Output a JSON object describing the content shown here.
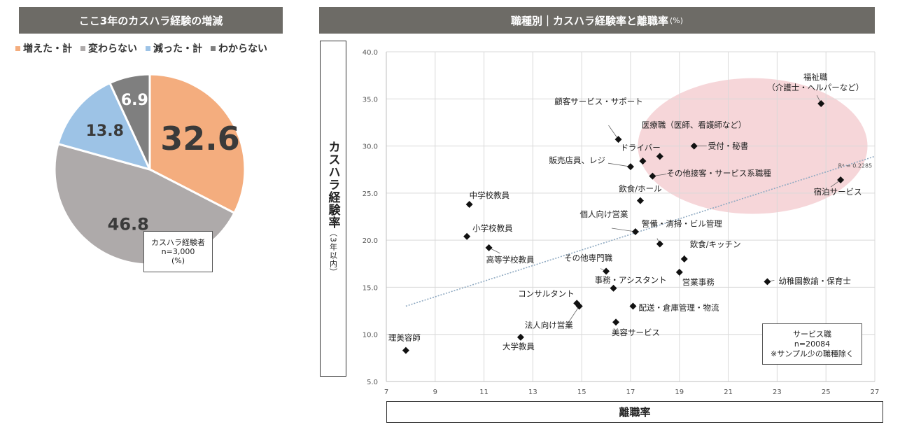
{
  "pie_panel": {
    "banner": "ここ3年のカスハラ経験の増減",
    "legend": [
      {
        "label": "増えた・計",
        "color": "#f4ad7e"
      },
      {
        "label": "変わらない",
        "color": "#aeaaaa"
      },
      {
        "label": "減った・計",
        "color": "#9dc3e6"
      },
      {
        "label": "わからない",
        "color": "#7f7f7f"
      }
    ],
    "note_line1": "カスハラ経験者",
    "note_line2": "n=3,000",
    "note_line3": "(%)"
  },
  "scatter_panel": {
    "banner": "職種別｜カスハラ経験率と離職率",
    "banner_unit": "(%)",
    "ylabel": "カスハラ経験率",
    "ylabel_sub": "（3年以内）",
    "xlabel": "離職率",
    "r2_label": "R² = 0.2285",
    "note_line1": "サービス職",
    "note_line2": "n=20084",
    "note_line3": "※サンプル少の職種除く"
  },
  "chart_data": [
    {
      "type": "pie",
      "title": "ここ3年のカスハラ経験の増減",
      "categories": [
        "増えた・計",
        "変わらない",
        "減った・計",
        "わからない"
      ],
      "values": [
        32.6,
        46.8,
        13.8,
        6.9
      ],
      "value_labels": [
        "32.6",
        "46.8",
        "13.8",
        "6.9"
      ],
      "colors": [
        "#f4ad7e",
        "#aeaaaa",
        "#9dc3e6",
        "#7f7f7f"
      ],
      "legend_position": "top"
    },
    {
      "type": "scatter",
      "title": "職種別｜カスハラ経験率と離職率",
      "xlabel": "離職率",
      "ylabel": "カスハラ経験率",
      "xlim": [
        7,
        27
      ],
      "ylim": [
        5,
        40
      ],
      "x_ticks": [
        "7",
        "9",
        "11",
        "13",
        "15",
        "17",
        "19",
        "21",
        "23",
        "25",
        "27"
      ],
      "y_ticks": [
        "5.0",
        "10.0",
        "15.0",
        "20.0",
        "25.0",
        "30.0",
        "35.0",
        "40.0"
      ],
      "grid": true,
      "trendline": {
        "x": [
          7.8,
          27
        ],
        "y": [
          13.0,
          28.9
        ],
        "r2": 0.2285
      },
      "highlight_region": {
        "cx": 22.0,
        "cy": 30.0,
        "rx": 4.7,
        "ry": 7.2,
        "color": "#f6d6d9"
      },
      "points": [
        {
          "label": "福祉職\n（介護士・ヘルパーなど）",
          "x": 24.8,
          "y": 34.5
        },
        {
          "label": "顧客サービス・サポート",
          "x": 16.5,
          "y": 30.7
        },
        {
          "label": "医療職（医師、看護師など）",
          "x": 18.2,
          "y": 28.9
        },
        {
          "label": "受付・秘書",
          "x": 19.6,
          "y": 30.0
        },
        {
          "label": "ドライバー",
          "x": 17.5,
          "y": 28.4
        },
        {
          "label": "販売店員、レジ",
          "x": 17.0,
          "y": 27.8
        },
        {
          "label": "その他接客・サービス系職種",
          "x": 17.9,
          "y": 26.8
        },
        {
          "label": "宿泊サービス",
          "x": 25.6,
          "y": 26.4
        },
        {
          "label": "飲食/ホール",
          "x": 17.4,
          "y": 24.2
        },
        {
          "label": "中学校教員",
          "x": 10.4,
          "y": 23.8
        },
        {
          "label": "個人向け営業",
          "x": 17.2,
          "y": 20.9
        },
        {
          "label": "小学校教員",
          "x": 10.3,
          "y": 20.4
        },
        {
          "label": "警備・清掃・ビル管理",
          "x": 18.2,
          "y": 19.6
        },
        {
          "label": "高等学校教員",
          "x": 11.2,
          "y": 19.2
        },
        {
          "label": "飲食/キッチン",
          "x": 19.2,
          "y": 18.0
        },
        {
          "label": "その他専門職",
          "x": 16.0,
          "y": 16.7
        },
        {
          "label": "営業事務",
          "x": 19.0,
          "y": 16.6
        },
        {
          "label": "幼稚園教諭・保育士",
          "x": 22.6,
          "y": 15.6
        },
        {
          "label": "事務・アシスタント",
          "x": 16.3,
          "y": 14.9
        },
        {
          "label": "コンサルタント",
          "x": 14.8,
          "y": 13.3
        },
        {
          "label": "法人向け営業",
          "x": 14.9,
          "y": 13.0
        },
        {
          "label": "配送・倉庫管理・物流",
          "x": 17.1,
          "y": 13.0
        },
        {
          "label": "美容サービス",
          "x": 16.4,
          "y": 11.3
        },
        {
          "label": "大学教員",
          "x": 12.5,
          "y": 9.7
        },
        {
          "label": "理美容師",
          "x": 7.8,
          "y": 8.3
        }
      ]
    }
  ]
}
